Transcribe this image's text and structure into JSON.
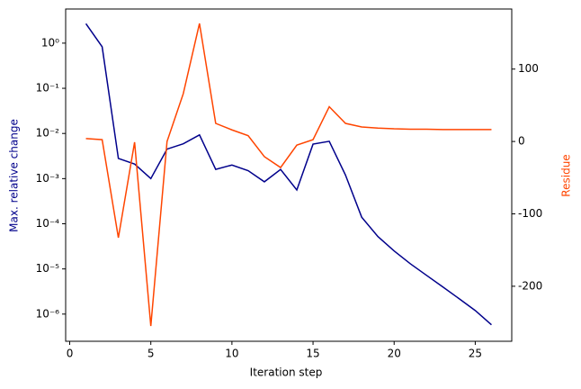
{
  "chart_data": {
    "type": "line",
    "x": [
      1,
      2,
      3,
      4,
      5,
      6,
      7,
      8,
      9,
      10,
      11,
      12,
      13,
      14,
      15,
      16,
      17,
      18,
      19,
      20,
      21,
      22,
      23,
      24,
      25,
      26
    ],
    "xlabel": "Iteration step",
    "ylabel": "Max. relative change",
    "y2label": "Residue",
    "xlim": [
      -0.25,
      27.25
    ],
    "xticks": [
      0,
      5,
      10,
      15,
      20,
      25
    ],
    "ylim": [
      2.5e-07,
      5.7
    ],
    "yscale": "log",
    "yticks": [
      {
        "value": 1e-06,
        "label": "10⁻⁶"
      },
      {
        "value": 1e-05,
        "label": "10⁻⁵"
      },
      {
        "value": 0.0001,
        "label": "10⁻⁴"
      },
      {
        "value": 0.001,
        "label": "10⁻³"
      },
      {
        "value": 0.01,
        "label": "10⁻²"
      },
      {
        "value": 0.1,
        "label": "10⁻¹"
      },
      {
        "value": 1,
        "label": "10⁰"
      }
    ],
    "y2lim": [
      -276,
      183
    ],
    "y2ticks": [
      -200,
      -100,
      0,
      100
    ],
    "series": [
      {
        "name": "Max. relative change",
        "color": "#00008b",
        "values": [
          2.7,
          0.83,
          0.0028,
          0.0021,
          0.001,
          0.0045,
          0.0059,
          0.0093,
          0.0016,
          0.002,
          0.0015,
          0.00085,
          0.0016,
          0.00056,
          0.0058,
          0.0067,
          0.0012,
          0.00014,
          5.2e-05,
          2.5e-05,
          1.3e-05,
          7.2e-06,
          4e-06,
          2.2e-06,
          1.2e-06,
          5.8e-07
        ]
      },
      {
        "name": "Residue",
        "color": "#ff4500",
        "axis": "y2",
        "values": [
          4,
          2.5,
          -133,
          -1,
          -255,
          0,
          66,
          163,
          25,
          16,
          8,
          -21,
          -36,
          -5,
          2.5,
          48,
          25,
          20,
          18.5,
          17.5,
          17,
          17,
          16.5,
          16.5,
          16.5,
          16.5
        ]
      }
    ]
  }
}
